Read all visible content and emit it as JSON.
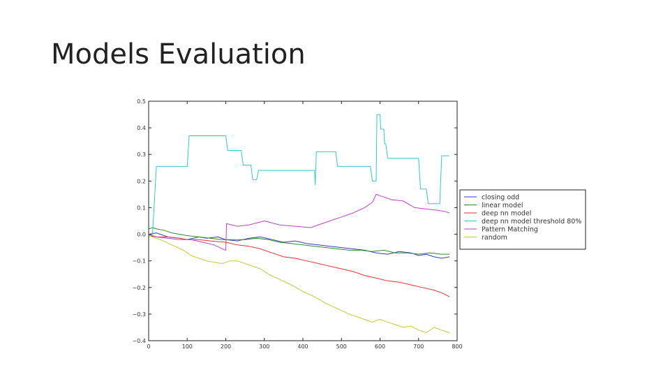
{
  "slide": {
    "title": "Models Evaluation"
  },
  "chart_data": {
    "type": "line",
    "title": "",
    "xlabel": "",
    "ylabel": "",
    "xlim": [
      0,
      800
    ],
    "ylim": [
      -0.4,
      0.5
    ],
    "xticks": [
      0,
      100,
      200,
      300,
      400,
      500,
      600,
      700,
      800
    ],
    "yticks": [
      -0.4,
      -0.3,
      -0.2,
      -0.1,
      0.0,
      0.1,
      0.2,
      0.3,
      0.4,
      0.5
    ],
    "xtick_labels": [
      "0",
      "100",
      "200",
      "300",
      "400",
      "500",
      "600",
      "700",
      "800"
    ],
    "ytick_labels": [
      "−0.4",
      "−0.3",
      "−0.2",
      "−0.1",
      "0.0",
      "0.1",
      "0.2",
      "0.3",
      "0.4",
      "0.5"
    ],
    "legend_position": "right",
    "series": [
      {
        "name": "closing odd",
        "color": "#3a3ab8",
        "x": [
          0,
          20,
          50,
          80,
          100,
          130,
          150,
          180,
          200,
          230,
          260,
          290,
          320,
          350,
          380,
          410,
          440,
          470,
          500,
          530,
          560,
          590,
          620,
          650,
          680,
          700,
          720,
          740,
          760,
          780
        ],
        "y": [
          0.0,
          0.005,
          -0.01,
          -0.015,
          -0.02,
          -0.01,
          -0.015,
          -0.01,
          -0.02,
          -0.025,
          -0.015,
          -0.01,
          -0.02,
          -0.03,
          -0.025,
          -0.035,
          -0.04,
          -0.045,
          -0.05,
          -0.055,
          -0.06,
          -0.07,
          -0.075,
          -0.065,
          -0.07,
          -0.08,
          -0.075,
          -0.085,
          -0.09,
          -0.085
        ]
      },
      {
        "name": "linear model",
        "color": "#2e8b2e",
        "x": [
          0,
          10,
          20,
          40,
          60,
          80,
          100,
          130,
          160,
          190,
          220,
          250,
          280,
          310,
          340,
          370,
          400,
          430,
          460,
          490,
          520,
          550,
          580,
          610,
          640,
          670,
          700,
          730,
          760,
          780
        ],
        "y": [
          0.02,
          0.025,
          0.02,
          0.015,
          0.005,
          0.0,
          -0.005,
          -0.01,
          -0.015,
          -0.02,
          -0.02,
          -0.02,
          -0.015,
          -0.02,
          -0.03,
          -0.035,
          -0.04,
          -0.045,
          -0.05,
          -0.055,
          -0.06,
          -0.06,
          -0.065,
          -0.06,
          -0.07,
          -0.07,
          -0.075,
          -0.07,
          -0.075,
          -0.075
        ]
      },
      {
        "name": "deep nn model",
        "color": "#e23232",
        "x": [
          0,
          20,
          50,
          80,
          100,
          130,
          160,
          200,
          230,
          260,
          290,
          320,
          350,
          380,
          410,
          440,
          470,
          500,
          530,
          560,
          590,
          620,
          650,
          680,
          710,
          740,
          760,
          780
        ],
        "y": [
          -0.005,
          -0.01,
          -0.01,
          -0.015,
          -0.02,
          -0.02,
          -0.025,
          -0.03,
          -0.04,
          -0.045,
          -0.055,
          -0.07,
          -0.085,
          -0.09,
          -0.1,
          -0.11,
          -0.12,
          -0.13,
          -0.14,
          -0.155,
          -0.165,
          -0.175,
          -0.18,
          -0.19,
          -0.2,
          -0.21,
          -0.22,
          -0.235
        ]
      },
      {
        "name": "deep nn model threshold 80%",
        "color": "#30c8c8",
        "x": [
          0,
          10,
          20,
          100,
          105,
          200,
          205,
          240,
          245,
          265,
          270,
          280,
          285,
          430,
          432,
          435,
          485,
          490,
          575,
          580,
          590,
          592,
          600,
          602,
          610,
          612,
          615,
          620,
          700,
          705,
          720,
          725,
          755,
          760,
          780
        ],
        "y": [
          0.0,
          0.0,
          0.255,
          0.255,
          0.37,
          0.37,
          0.315,
          0.315,
          0.26,
          0.26,
          0.205,
          0.205,
          0.24,
          0.24,
          0.185,
          0.31,
          0.31,
          0.255,
          0.255,
          0.2,
          0.2,
          0.45,
          0.45,
          0.395,
          0.395,
          0.34,
          0.34,
          0.285,
          0.285,
          0.17,
          0.17,
          0.115,
          0.115,
          0.295,
          0.295
        ]
      },
      {
        "name": "Pattern Matching",
        "color": "#c040c8",
        "x": [
          0,
          20,
          50,
          80,
          110,
          140,
          170,
          199,
          200,
          202,
          230,
          260,
          300,
          340,
          380,
          420,
          460,
          500,
          530,
          560,
          580,
          590,
          600,
          630,
          660,
          690,
          720,
          750,
          770,
          780
        ],
        "y": [
          0.0,
          -0.01,
          -0.015,
          -0.02,
          -0.02,
          -0.03,
          -0.04,
          -0.06,
          -0.06,
          0.04,
          0.03,
          0.035,
          0.05,
          0.035,
          0.03,
          0.025,
          0.045,
          0.065,
          0.08,
          0.1,
          0.12,
          0.15,
          0.145,
          0.13,
          0.125,
          0.1,
          0.095,
          0.09,
          0.085,
          0.08
        ]
      },
      {
        "name": "random",
        "color": "#c8c832",
        "x": [
          0,
          30,
          60,
          90,
          110,
          130,
          150,
          170,
          190,
          210,
          230,
          250,
          270,
          290,
          310,
          340,
          370,
          400,
          430,
          460,
          490,
          520,
          550,
          580,
          600,
          620,
          640,
          660,
          680,
          700,
          720,
          740,
          760,
          780
        ],
        "y": [
          -0.005,
          -0.02,
          -0.04,
          -0.06,
          -0.08,
          -0.09,
          -0.1,
          -0.105,
          -0.11,
          -0.1,
          -0.1,
          -0.11,
          -0.12,
          -0.13,
          -0.15,
          -0.17,
          -0.19,
          -0.215,
          -0.235,
          -0.26,
          -0.28,
          -0.3,
          -0.315,
          -0.33,
          -0.32,
          -0.33,
          -0.34,
          -0.35,
          -0.345,
          -0.36,
          -0.37,
          -0.35,
          -0.36,
          -0.37
        ]
      }
    ]
  }
}
